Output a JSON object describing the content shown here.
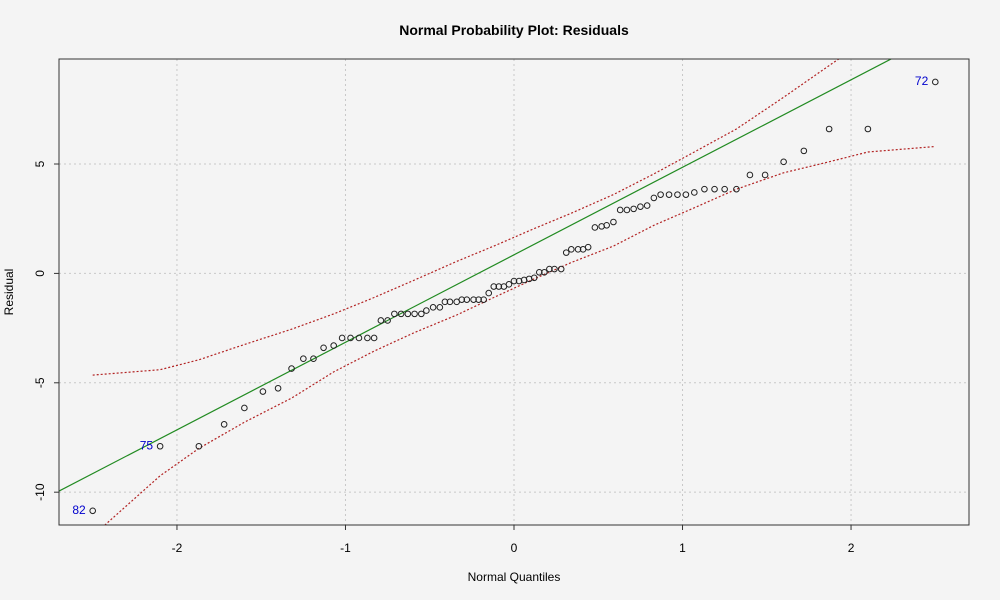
{
  "chart_data": {
    "type": "scatter",
    "title": "Normal Probability Plot: Residuals",
    "xlabel": "Normal Quantiles",
    "ylabel": "Residual",
    "xlim": [
      -2.7,
      2.7
    ],
    "ylim": [
      -11.5,
      9.8
    ],
    "xticks": [
      -2,
      -1,
      0,
      1,
      2
    ],
    "yticks": [
      -10,
      -5,
      0,
      5
    ],
    "grid": true,
    "points": [
      [
        -2.5,
        -10.85
      ],
      [
        -2.1,
        -7.9
      ],
      [
        -1.87,
        -7.9
      ],
      [
        -1.72,
        -6.9
      ],
      [
        -1.6,
        -6.15
      ],
      [
        -1.49,
        -5.4
      ],
      [
        -1.4,
        -5.25
      ],
      [
        -1.32,
        -4.35
      ],
      [
        -1.25,
        -3.9
      ],
      [
        -1.19,
        -3.9
      ],
      [
        -1.13,
        -3.4
      ],
      [
        -1.07,
        -3.3
      ],
      [
        -1.02,
        -2.95
      ],
      [
        -0.97,
        -2.95
      ],
      [
        -0.92,
        -2.95
      ],
      [
        -0.87,
        -2.95
      ],
      [
        -0.83,
        -2.95
      ],
      [
        -0.79,
        -2.15
      ],
      [
        -0.75,
        -2.15
      ],
      [
        -0.71,
        -1.85
      ],
      [
        -0.67,
        -1.85
      ],
      [
        -0.63,
        -1.85
      ],
      [
        -0.59,
        -1.85
      ],
      [
        -0.55,
        -1.85
      ],
      [
        -0.52,
        -1.7
      ],
      [
        -0.48,
        -1.55
      ],
      [
        -0.44,
        -1.55
      ],
      [
        -0.41,
        -1.3
      ],
      [
        -0.38,
        -1.3
      ],
      [
        -0.34,
        -1.3
      ],
      [
        -0.31,
        -1.2
      ],
      [
        -0.28,
        -1.2
      ],
      [
        -0.24,
        -1.2
      ],
      [
        -0.21,
        -1.2
      ],
      [
        -0.18,
        -1.2
      ],
      [
        -0.15,
        -0.9
      ],
      [
        -0.12,
        -0.6
      ],
      [
        -0.09,
        -0.6
      ],
      [
        -0.06,
        -0.6
      ],
      [
        -0.03,
        -0.5
      ],
      [
        0.0,
        -0.35
      ],
      [
        0.03,
        -0.35
      ],
      [
        0.06,
        -0.3
      ],
      [
        0.09,
        -0.25
      ],
      [
        0.12,
        -0.2
      ],
      [
        0.15,
        0.05
      ],
      [
        0.18,
        0.05
      ],
      [
        0.21,
        0.2
      ],
      [
        0.24,
        0.2
      ],
      [
        0.28,
        0.2
      ],
      [
        0.31,
        0.95
      ],
      [
        0.34,
        1.1
      ],
      [
        0.38,
        1.1
      ],
      [
        0.41,
        1.1
      ],
      [
        0.44,
        1.2
      ],
      [
        0.48,
        2.1
      ],
      [
        0.52,
        2.15
      ],
      [
        0.55,
        2.2
      ],
      [
        0.59,
        2.35
      ],
      [
        0.63,
        2.9
      ],
      [
        0.67,
        2.9
      ],
      [
        0.71,
        2.95
      ],
      [
        0.75,
        3.05
      ],
      [
        0.79,
        3.1
      ],
      [
        0.83,
        3.45
      ],
      [
        0.87,
        3.6
      ],
      [
        0.92,
        3.6
      ],
      [
        0.97,
        3.6
      ],
      [
        1.02,
        3.6
      ],
      [
        1.07,
        3.7
      ],
      [
        1.13,
        3.85
      ],
      [
        1.19,
        3.85
      ],
      [
        1.25,
        3.85
      ],
      [
        1.32,
        3.85
      ],
      [
        1.4,
        4.5
      ],
      [
        1.49,
        4.5
      ],
      [
        1.6,
        5.1
      ],
      [
        1.72,
        5.6
      ],
      [
        1.87,
        6.6
      ],
      [
        2.1,
        6.6
      ],
      [
        2.5,
        8.75
      ]
    ],
    "reference_line": {
      "intercept": 0.85,
      "slope": 4.0,
      "color": "#228b22"
    },
    "envelope": {
      "color": "#b22222",
      "x": [
        -2.5,
        -2.1,
        -1.87,
        -1.6,
        -1.32,
        -1.07,
        -0.83,
        -0.59,
        -0.34,
        -0.12,
        0.12,
        0.34,
        0.59,
        0.83,
        1.07,
        1.32,
        1.6,
        1.87,
        2.1,
        2.5
      ],
      "upper": [
        -4.65,
        -4.4,
        -3.95,
        -3.25,
        -2.55,
        -1.85,
        -1.1,
        -0.3,
        0.55,
        1.25,
        2.05,
        2.75,
        3.6,
        4.55,
        5.55,
        6.6,
        8.05,
        9.5,
        10.7,
        13.2
      ],
      "lower": [
        -12.0,
        -9.25,
        -8.0,
        -6.8,
        -5.7,
        -4.5,
        -3.55,
        -2.7,
        -1.9,
        -1.1,
        -0.25,
        0.5,
        1.25,
        2.2,
        3.0,
        3.85,
        4.6,
        5.1,
        5.55,
        5.8
      ]
    },
    "annotations": [
      {
        "label": "82",
        "x": -2.5,
        "y": -10.85,
        "side": "left",
        "color": "#0000cd"
      },
      {
        "label": "75",
        "x": -2.1,
        "y": -7.9,
        "side": "left",
        "color": "#0000cd"
      },
      {
        "label": "72",
        "x": 2.5,
        "y": 8.75,
        "side": "left",
        "color": "#0000cd"
      }
    ]
  }
}
